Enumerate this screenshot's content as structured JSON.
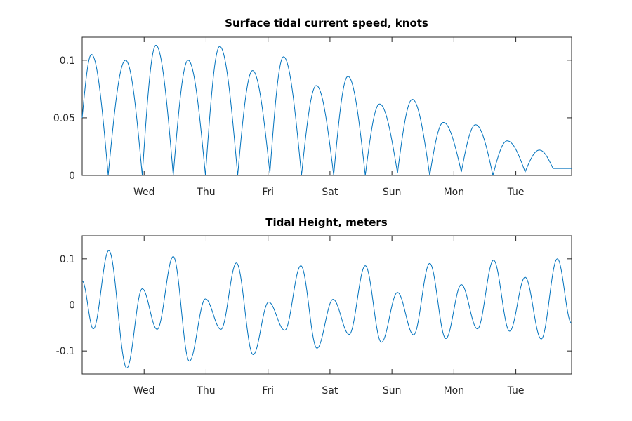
{
  "chart_data": [
    {
      "type": "line",
      "title": "Surface tidal current speed, knots",
      "xlabel": "",
      "ylabel": "",
      "x_tick_labels": [
        "Wed",
        "Thu",
        "Fri",
        "Sat",
        "Sun",
        "Mon",
        "Tue"
      ],
      "xlim_days": [
        0,
        7.9
      ],
      "x_tick_positions_days": [
        1,
        2,
        3,
        4,
        5,
        6,
        7
      ],
      "ylim": [
        0,
        0.12
      ],
      "y_ticks": [
        0,
        0.05,
        0.1
      ],
      "y_tick_labels": [
        "0",
        "0.05",
        "0.1"
      ],
      "grid": false,
      "series": [
        {
          "color": "#0072bd",
          "x": [
            0.0,
            0.15,
            0.42,
            0.7,
            0.97,
            1.19,
            1.47,
            1.71,
            1.99,
            2.22,
            2.51,
            2.75,
            3.03,
            3.25,
            3.54,
            3.78,
            4.06,
            4.29,
            4.57,
            4.8,
            5.09,
            5.33,
            5.61,
            5.83,
            6.12,
            6.35,
            6.63,
            6.86,
            7.15,
            7.38,
            7.6,
            7.9
          ],
          "peaks_and_troughs": [
            0.05,
            0.105,
            0.0,
            0.1,
            0.0,
            0.113,
            0.0,
            0.1,
            0.0,
            0.112,
            0.0,
            0.091,
            0.002,
            0.103,
            0.0,
            0.078,
            0.0,
            0.086,
            0.0,
            0.062,
            0.002,
            0.066,
            0.0,
            0.046,
            0.003,
            0.044,
            0.0,
            0.03,
            0.003,
            0.022,
            0.006,
            0.006
          ]
        }
      ]
    },
    {
      "type": "line",
      "title": "Tidal Height, meters",
      "xlabel": "",
      "ylabel": "",
      "x_tick_labels": [
        "Wed",
        "Thu",
        "Fri",
        "Sat",
        "Sun",
        "Mon",
        "Tue"
      ],
      "xlim_days": [
        0,
        7.9
      ],
      "x_tick_positions_days": [
        1,
        2,
        3,
        4,
        5,
        6,
        7
      ],
      "ylim": [
        -0.15,
        0.15
      ],
      "y_ticks": [
        -0.1,
        0,
        0.1
      ],
      "y_tick_labels": [
        "-0.1",
        "0",
        "0.1"
      ],
      "grid": false,
      "zero_line": true,
      "series": [
        {
          "color": "#0072bd",
          "x": [
            0.0,
            0.18,
            0.43,
            0.72,
            0.97,
            1.21,
            1.47,
            1.73,
            1.99,
            2.24,
            2.49,
            2.76,
            3.01,
            3.27,
            3.53,
            3.79,
            4.05,
            4.31,
            4.57,
            4.83,
            5.09,
            5.35,
            5.61,
            5.87,
            6.12,
            6.38,
            6.64,
            6.9,
            7.15,
            7.41,
            7.67,
            7.9
          ],
          "peaks_and_troughs": [
            0.052,
            -0.052,
            0.118,
            -0.137,
            0.035,
            -0.053,
            0.105,
            -0.122,
            0.013,
            -0.053,
            0.091,
            -0.108,
            0.006,
            -0.055,
            0.085,
            -0.094,
            0.012,
            -0.064,
            0.085,
            -0.081,
            0.027,
            -0.065,
            0.09,
            -0.073,
            0.044,
            -0.052,
            0.097,
            -0.057,
            0.06,
            -0.074,
            0.1,
            -0.04
          ]
        }
      ]
    }
  ]
}
